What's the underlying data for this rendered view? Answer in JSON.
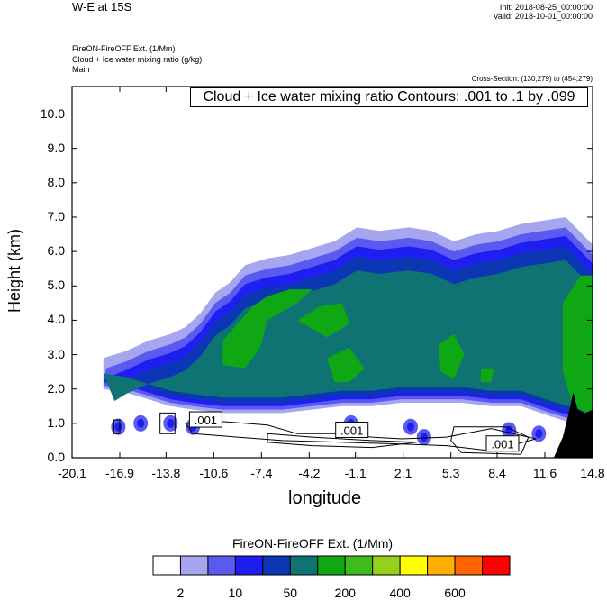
{
  "header": {
    "title": "W-E at 15S",
    "init": "Init: 2018-08-25_00:00:00",
    "valid": "Valid: 2018-10-01_00:00:00",
    "field_name": "FireON-FireOFF Ext.   (1/Mm)",
    "contour_field": "Cloud + Ice water mixing ratio   (g/kg)",
    "domain": "Main",
    "cross_section": "Cross-Section: (130,279) to (454,279)"
  },
  "colors": {
    "levels": [
      "#ffffff",
      "#a6a6f0",
      "#5a5af0",
      "#1e1ef0",
      "#0c37b4",
      "#0f7373",
      "#0fa814",
      "#3fbb1e",
      "#96d01e",
      "#ffff00",
      "#ffae00",
      "#ff6400",
      "#ff0000"
    ],
    "terrain": "#000000"
  },
  "chart_data": {
    "type": "heatmap",
    "title": "Cloud + Ice water mixing ratio Contours: .001 to .1 by .099",
    "xlabel": "longitude",
    "ylabel": "Height (km)",
    "xlim": [
      -20.1,
      14.8
    ],
    "ylim": [
      0.0,
      10.8
    ],
    "xticks": [
      "-20.1",
      "-16.9",
      "-13.8",
      "-10.6",
      "-7.4",
      "-4.2",
      "-1.1",
      "2.1",
      "5.3",
      "8.4",
      "11.6",
      "14.8"
    ],
    "xtick_values": [
      -20.1,
      -16.9,
      -13.8,
      -10.6,
      -7.4,
      -4.2,
      -1.1,
      2.1,
      5.3,
      8.4,
      11.6,
      14.8
    ],
    "yticks": [
      "0.0",
      "1.0",
      "2.0",
      "3.0",
      "4.0",
      "5.0",
      "6.0",
      "7.0",
      "8.0",
      "9.0",
      "10.0"
    ],
    "ytick_values": [
      0,
      1,
      2,
      3,
      4,
      5,
      6,
      7,
      8,
      9,
      10
    ],
    "contour_labels": [
      ".001",
      ".001",
      ".001"
    ],
    "colorbar": {
      "title": "FireON-FireOFF Ext.  (1/Mm)",
      "labels": [
        "2",
        "10",
        "50",
        "200",
        "400",
        "600"
      ]
    }
  }
}
